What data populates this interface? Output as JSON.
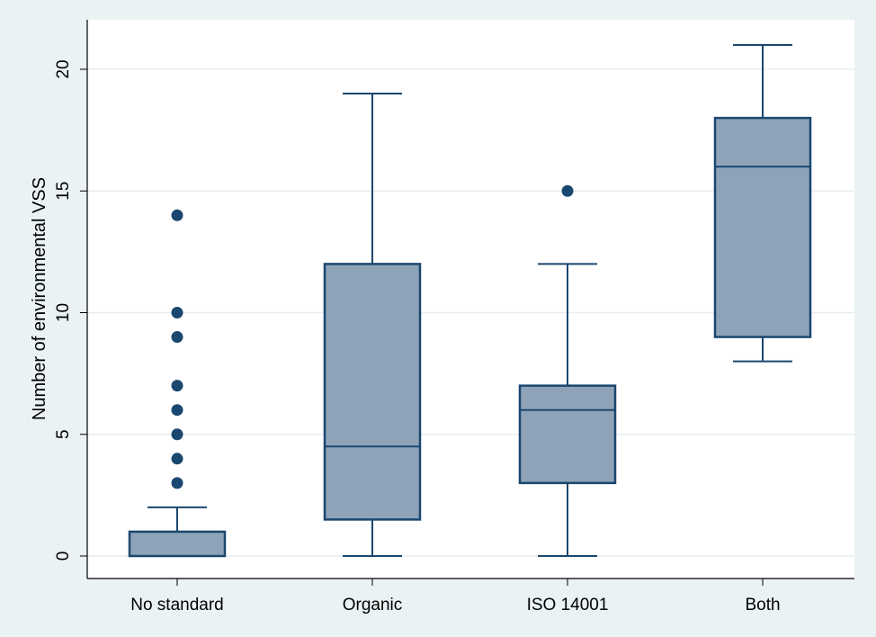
{
  "chart_data": {
    "type": "box",
    "title": "",
    "xlabel": "",
    "ylabel": "Number of environmental VSS",
    "ylim": [
      -1,
      22
    ],
    "yticks": [
      0,
      5,
      10,
      15,
      20
    ],
    "grid": true,
    "legend": "none",
    "colors": {
      "box_fill": "#8ea3b8",
      "stroke": "#1a476f",
      "grid": "#e6eef1",
      "background": "#eaf2f3"
    },
    "categories": [
      "No standard",
      "Organic",
      "ISO 14001",
      "Both"
    ],
    "boxes": [
      {
        "name": "No standard",
        "whisker_low": 0,
        "q1": 0,
        "median": 0,
        "q3": 1,
        "whisker_high": 2,
        "outliers": [
          3,
          4,
          5,
          6,
          7,
          9,
          10,
          14
        ]
      },
      {
        "name": "Organic",
        "whisker_low": 0,
        "q1": 1.5,
        "median": 4.5,
        "q3": 12,
        "whisker_high": 19,
        "outliers": []
      },
      {
        "name": "ISO 14001",
        "whisker_low": 0,
        "q1": 3,
        "median": 6,
        "q3": 7,
        "whisker_high": 12,
        "outliers": [
          15
        ]
      },
      {
        "name": "Both",
        "whisker_low": 8,
        "q1": 9,
        "median": 16,
        "q3": 18,
        "whisker_high": 21,
        "outliers": []
      }
    ]
  }
}
